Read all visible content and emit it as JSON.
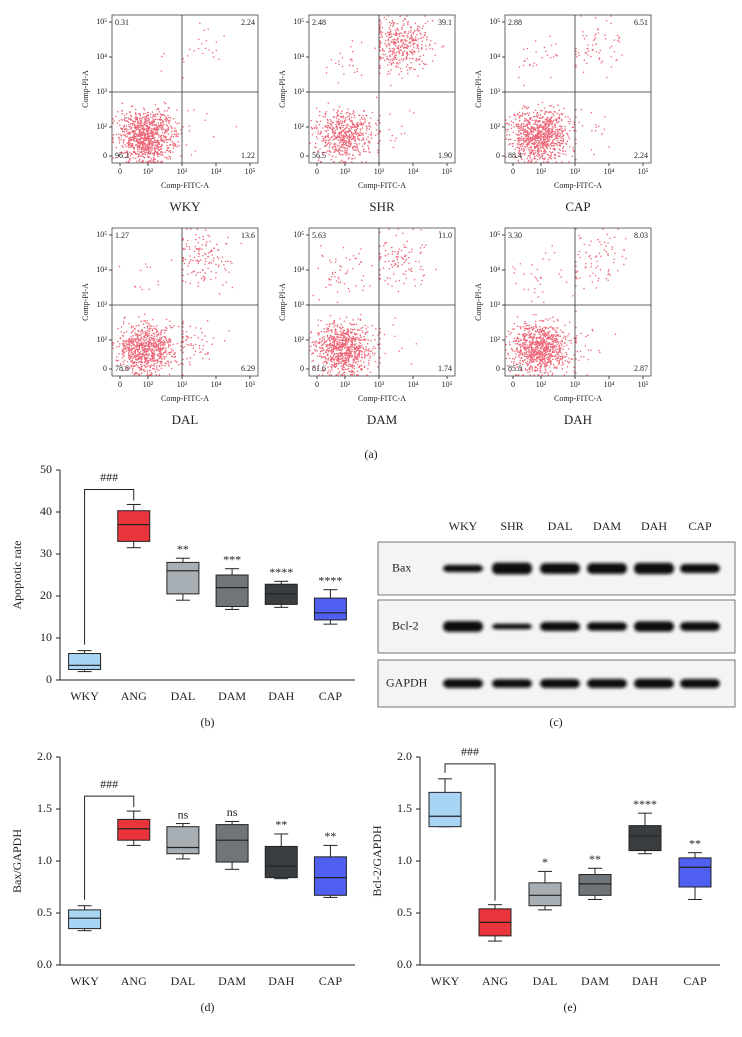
{
  "panel_a_caption": "(a)",
  "chart_data": [
    {
      "type": "flow",
      "title": "WKY",
      "x_label": "Comp-FITC-A",
      "y_label": "Comp-PI-A",
      "scale": "biexponential",
      "gate": [
        1000,
        1000
      ],
      "xticks": [
        0,
        {
          "value": 100,
          "label": "10²"
        },
        {
          "value": 1000,
          "label": "10³"
        },
        {
          "value": 10000,
          "label": "10⁴"
        },
        {
          "value": 100000,
          "label": "10⁵"
        }
      ],
      "yticks": [
        0,
        {
          "value": 100,
          "label": "10²"
        },
        {
          "value": 1000,
          "label": "10³"
        },
        {
          "value": 10000,
          "label": "10⁴"
        },
        {
          "value": 100000,
          "label": "10⁵"
        }
      ],
      "values": [
        0.31,
        2.24,
        96.2,
        1.22
      ],
      "color": "#e8344a"
    },
    {
      "type": "flow",
      "title": "SHR",
      "x_label": "Comp-FITC-A",
      "y_label": "Comp-PI-A",
      "scale": "biexponential",
      "gate": [
        1000,
        1000
      ],
      "xticks": [
        0,
        {
          "value": 100,
          "label": "10²"
        },
        {
          "value": 1000,
          "label": "10³"
        },
        {
          "value": 10000,
          "label": "10⁴"
        },
        {
          "value": 100000,
          "label": "10⁵"
        }
      ],
      "yticks": [
        0,
        {
          "value": 100,
          "label": "10²"
        },
        {
          "value": 1000,
          "label": "10³"
        },
        {
          "value": 10000,
          "label": "10⁴"
        },
        {
          "value": 100000,
          "label": "10⁵"
        }
      ],
      "values": [
        2.48,
        39.1,
        56.5,
        1.9
      ],
      "value_labels": [
        "2.48",
        "39.1",
        "56.5",
        "1.90"
      ],
      "color": "#e8344a"
    },
    {
      "type": "flow",
      "title": "CAP",
      "x_label": "Comp-FITC-A",
      "y_label": "Comp-PI-A",
      "scale": "biexponential",
      "gate": [
        1000,
        1000
      ],
      "xticks": [
        0,
        {
          "value": 100,
          "label": "10²"
        },
        {
          "value": 1000,
          "label": "10³"
        },
        {
          "value": 10000,
          "label": "10⁴"
        },
        {
          "value": 100000,
          "label": "10⁵"
        }
      ],
      "yticks": [
        0,
        {
          "value": 100,
          "label": "10²"
        },
        {
          "value": 1000,
          "label": "10³"
        },
        {
          "value": 10000,
          "label": "10⁴"
        },
        {
          "value": 100000,
          "label": "10⁵"
        }
      ],
      "values": [
        2.88,
        6.51,
        88.4,
        2.24
      ],
      "color": "#e8344a"
    },
    {
      "type": "flow",
      "title": "DAL",
      "x_label": "Comp-FITC-A",
      "y_label": "Comp-PI-A",
      "scale": "biexponential",
      "gate": [
        1000,
        1000
      ],
      "xticks": [
        0,
        {
          "value": 100,
          "label": "10²"
        },
        {
          "value": 1000,
          "label": "10³"
        },
        {
          "value": 10000,
          "label": "10⁴"
        },
        {
          "value": 100000,
          "label": "10⁵"
        }
      ],
      "yticks": [
        0,
        {
          "value": 100,
          "label": "10²"
        },
        {
          "value": 1000,
          "label": "10³"
        },
        {
          "value": 10000,
          "label": "10⁴"
        },
        {
          "value": 100000,
          "label": "10⁵"
        }
      ],
      "values": [
        1.27,
        13.6,
        78.8,
        6.29
      ],
      "color": "#e8344a"
    },
    {
      "type": "flow",
      "title": "DAM",
      "x_label": "Comp-FITC-A",
      "y_label": "Comp-PI-A",
      "scale": "biexponential",
      "gate": [
        1000,
        1000
      ],
      "xticks": [
        0,
        {
          "value": 100,
          "label": "10²"
        },
        {
          "value": 1000,
          "label": "10³"
        },
        {
          "value": 10000,
          "label": "10⁴"
        },
        {
          "value": 100000,
          "label": "10⁵"
        }
      ],
      "yticks": [
        0,
        {
          "value": 100,
          "label": "10²"
        },
        {
          "value": 1000,
          "label": "10³"
        },
        {
          "value": 10000,
          "label": "10⁴"
        },
        {
          "value": 100000,
          "label": "10⁵"
        }
      ],
      "values": [
        5.63,
        11,
        81.6,
        1.74
      ],
      "value_labels": [
        "5.63",
        "11.0",
        "81.6",
        "1.74"
      ],
      "color": "#e8344a"
    },
    {
      "type": "flow",
      "title": "DAH",
      "x_label": "Comp-FITC-A",
      "y_label": "Comp-PI-A",
      "scale": "biexponential",
      "gate": [
        1000,
        1000
      ],
      "xticks": [
        0,
        {
          "value": 100,
          "label": "10²"
        },
        {
          "value": 1000,
          "label": "10³"
        },
        {
          "value": 10000,
          "label": "10⁴"
        },
        {
          "value": 100000,
          "label": "10⁵"
        }
      ],
      "yticks": [
        0,
        {
          "value": 100,
          "label": "10²"
        },
        {
          "value": 1000,
          "label": "10³"
        },
        {
          "value": 10000,
          "label": "10⁴"
        },
        {
          "value": 100000,
          "label": "10⁵"
        }
      ],
      "values": [
        3.3,
        8.03,
        85.8,
        2.87
      ],
      "value_labels": [
        "3.30",
        "8.03",
        "85.8",
        "2.87"
      ],
      "color": "#e8344a"
    },
    {
      "type": "box",
      "caption": "(b)",
      "y_label": "Apoptotic rate",
      "categories": [
        "WKY",
        "ANG",
        "DAL",
        "DAM",
        "DAH",
        "CAP"
      ],
      "colors": [
        "#a9d5f5",
        "#e8343a",
        "#a7afb4",
        "#707579",
        "#3a3d40",
        "#4f5ff0"
      ],
      "min": [
        2,
        31.5,
        19,
        16.8,
        17.3,
        13.3
      ],
      "q1": [
        2.5,
        33,
        20.5,
        17.5,
        18,
        14.3
      ],
      "median": [
        3.5,
        37,
        26,
        22,
        20.5,
        16
      ],
      "q3": [
        6.3,
        40.3,
        28,
        25,
        22.8,
        19.5
      ],
      "max": [
        7,
        41.8,
        29,
        26.5,
        23.5,
        21.5
      ],
      "ylim": [
        0,
        50
      ],
      "yticks": [
        0,
        10,
        20,
        30,
        40,
        50
      ],
      "bracket_label": "###",
      "sig_labels": [
        null,
        null,
        "**",
        "***",
        "****",
        "****"
      ]
    },
    {
      "type": "box",
      "caption": "(d)",
      "y_label": "Bax/GAPDH",
      "categories": [
        "WKY",
        "ANG",
        "DAL",
        "DAM",
        "DAH",
        "CAP"
      ],
      "colors": [
        "#a9d5f5",
        "#e8343a",
        "#a7afb4",
        "#707579",
        "#3a3d40",
        "#4f5ff0"
      ],
      "min": [
        0.33,
        1.15,
        1.02,
        0.92,
        0.83,
        0.65
      ],
      "q1": [
        0.35,
        1.2,
        1.07,
        0.99,
        0.84,
        0.67
      ],
      "median": [
        0.45,
        1.31,
        1.13,
        1.2,
        0.95,
        0.84
      ],
      "q3": [
        0.53,
        1.4,
        1.33,
        1.35,
        1.14,
        1.04
      ],
      "max": [
        0.57,
        1.48,
        1.36,
        1.38,
        1.26,
        1.15
      ],
      "ylim": [
        0,
        2
      ],
      "yticks": [
        {
          "value": 0,
          "label": "0.0"
        },
        0.5,
        {
          "value": 1,
          "label": "1.0"
        },
        1.5,
        {
          "value": 2,
          "label": "2.0"
        }
      ],
      "bracket_label": "###",
      "sig_labels": [
        null,
        null,
        "ns",
        "ns",
        "**",
        "**"
      ]
    },
    {
      "type": "box",
      "caption": "(e)",
      "y_label": "Bcl-2/GAPDH",
      "categories": [
        "WKY",
        "ANG",
        "DAL",
        "DAM",
        "DAH",
        "CAP"
      ],
      "colors": [
        "#a9d5f5",
        "#e8343a",
        "#a7afb4",
        "#707579",
        "#3a3d40",
        "#4f5ff0"
      ],
      "min": [
        1.33,
        0.23,
        0.53,
        0.63,
        1.07,
        0.63
      ],
      "q1": [
        1.33,
        0.28,
        0.57,
        0.67,
        1.1,
        0.75
      ],
      "median": [
        1.43,
        0.41,
        0.67,
        0.78,
        1.24,
        0.94
      ],
      "q3": [
        1.66,
        0.54,
        0.79,
        0.87,
        1.34,
        1.03
      ],
      "max": [
        1.79,
        0.58,
        0.9,
        0.93,
        1.46,
        1.08
      ],
      "ylim": [
        0,
        2
      ],
      "yticks": [
        {
          "value": 0,
          "label": "0.0"
        },
        0.5,
        {
          "value": 1,
          "label": "1.0"
        },
        1.5,
        {
          "value": 2,
          "label": "2.0"
        }
      ],
      "bracket_label": "###",
      "sig_labels": [
        null,
        null,
        "*",
        "**",
        "****",
        "**"
      ]
    }
  ],
  "blot": {
    "caption": "(c)",
    "lanes": [
      "WKY",
      "SHR",
      "DAL",
      "DAM",
      "DAH",
      "CAP"
    ],
    "rows": [
      "Bax",
      "Bcl-2",
      "GAPDH"
    ]
  }
}
